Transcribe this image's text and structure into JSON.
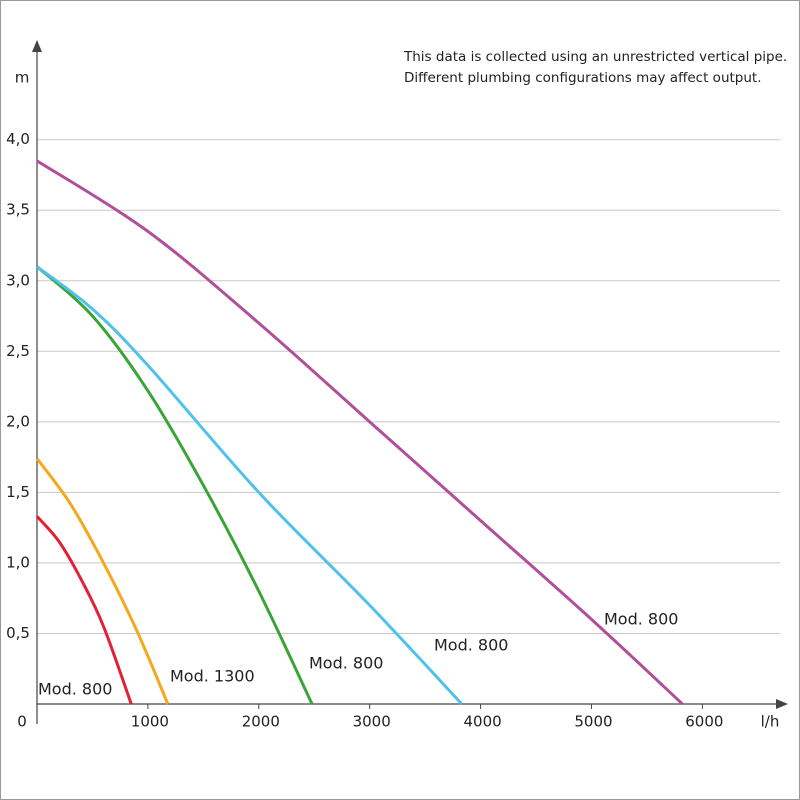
{
  "chart_data": {
    "type": "line",
    "annotation": [
      "This data is collected using an unrestricted vertical pipe.",
      "Different plumbing configurations may affect output."
    ],
    "x_label": "l/h",
    "y_label": "m",
    "xlim": [
      0,
      6700
    ],
    "ylim": [
      0,
      4.65
    ],
    "xticks": [
      0,
      1000,
      2000,
      3000,
      4000,
      5000,
      6000
    ],
    "yticks": [
      {
        "value": 0.5,
        "label": "0,5"
      },
      {
        "value": 1.0,
        "label": "1,0"
      },
      {
        "value": 1.5,
        "label": "1,5"
      },
      {
        "value": 2.0,
        "label": "2,0"
      },
      {
        "value": 2.5,
        "label": "2,5"
      },
      {
        "value": 3.0,
        "label": "3,0"
      },
      {
        "value": 3.5,
        "label": "3,5"
      },
      {
        "value": 4.0,
        "label": "4,0"
      }
    ],
    "grid": true,
    "series": [
      {
        "name": "Mod. 800",
        "color": "#e3203a",
        "x": [
          0,
          200,
          400,
          600,
          850
        ],
        "values": [
          1.33,
          1.15,
          0.88,
          0.55,
          0
        ]
      },
      {
        "name": "Mod. 1300",
        "color": "#f6a81c",
        "x": [
          0,
          300,
          600,
          900,
          1180
        ],
        "values": [
          1.74,
          1.42,
          1.0,
          0.52,
          0
        ]
      },
      {
        "name": "Mod. 800",
        "color": "#3aa437",
        "x": [
          0,
          500,
          1000,
          1500,
          2000,
          2480
        ],
        "values": [
          3.1,
          2.75,
          2.22,
          1.55,
          0.8,
          0
        ]
      },
      {
        "name": "Mod. 800",
        "color": "#4fc2ec",
        "x": [
          0,
          500,
          1000,
          2000,
          3000,
          3830
        ],
        "values": [
          3.1,
          2.8,
          2.4,
          1.5,
          0.7,
          0
        ]
      },
      {
        "name": "Mod. 800",
        "color": "#b04f9a",
        "x": [
          0,
          1000,
          2000,
          3000,
          4000,
          5000,
          5820
        ],
        "values": [
          3.85,
          3.35,
          2.7,
          2.0,
          1.3,
          0.6,
          0
        ]
      }
    ]
  }
}
